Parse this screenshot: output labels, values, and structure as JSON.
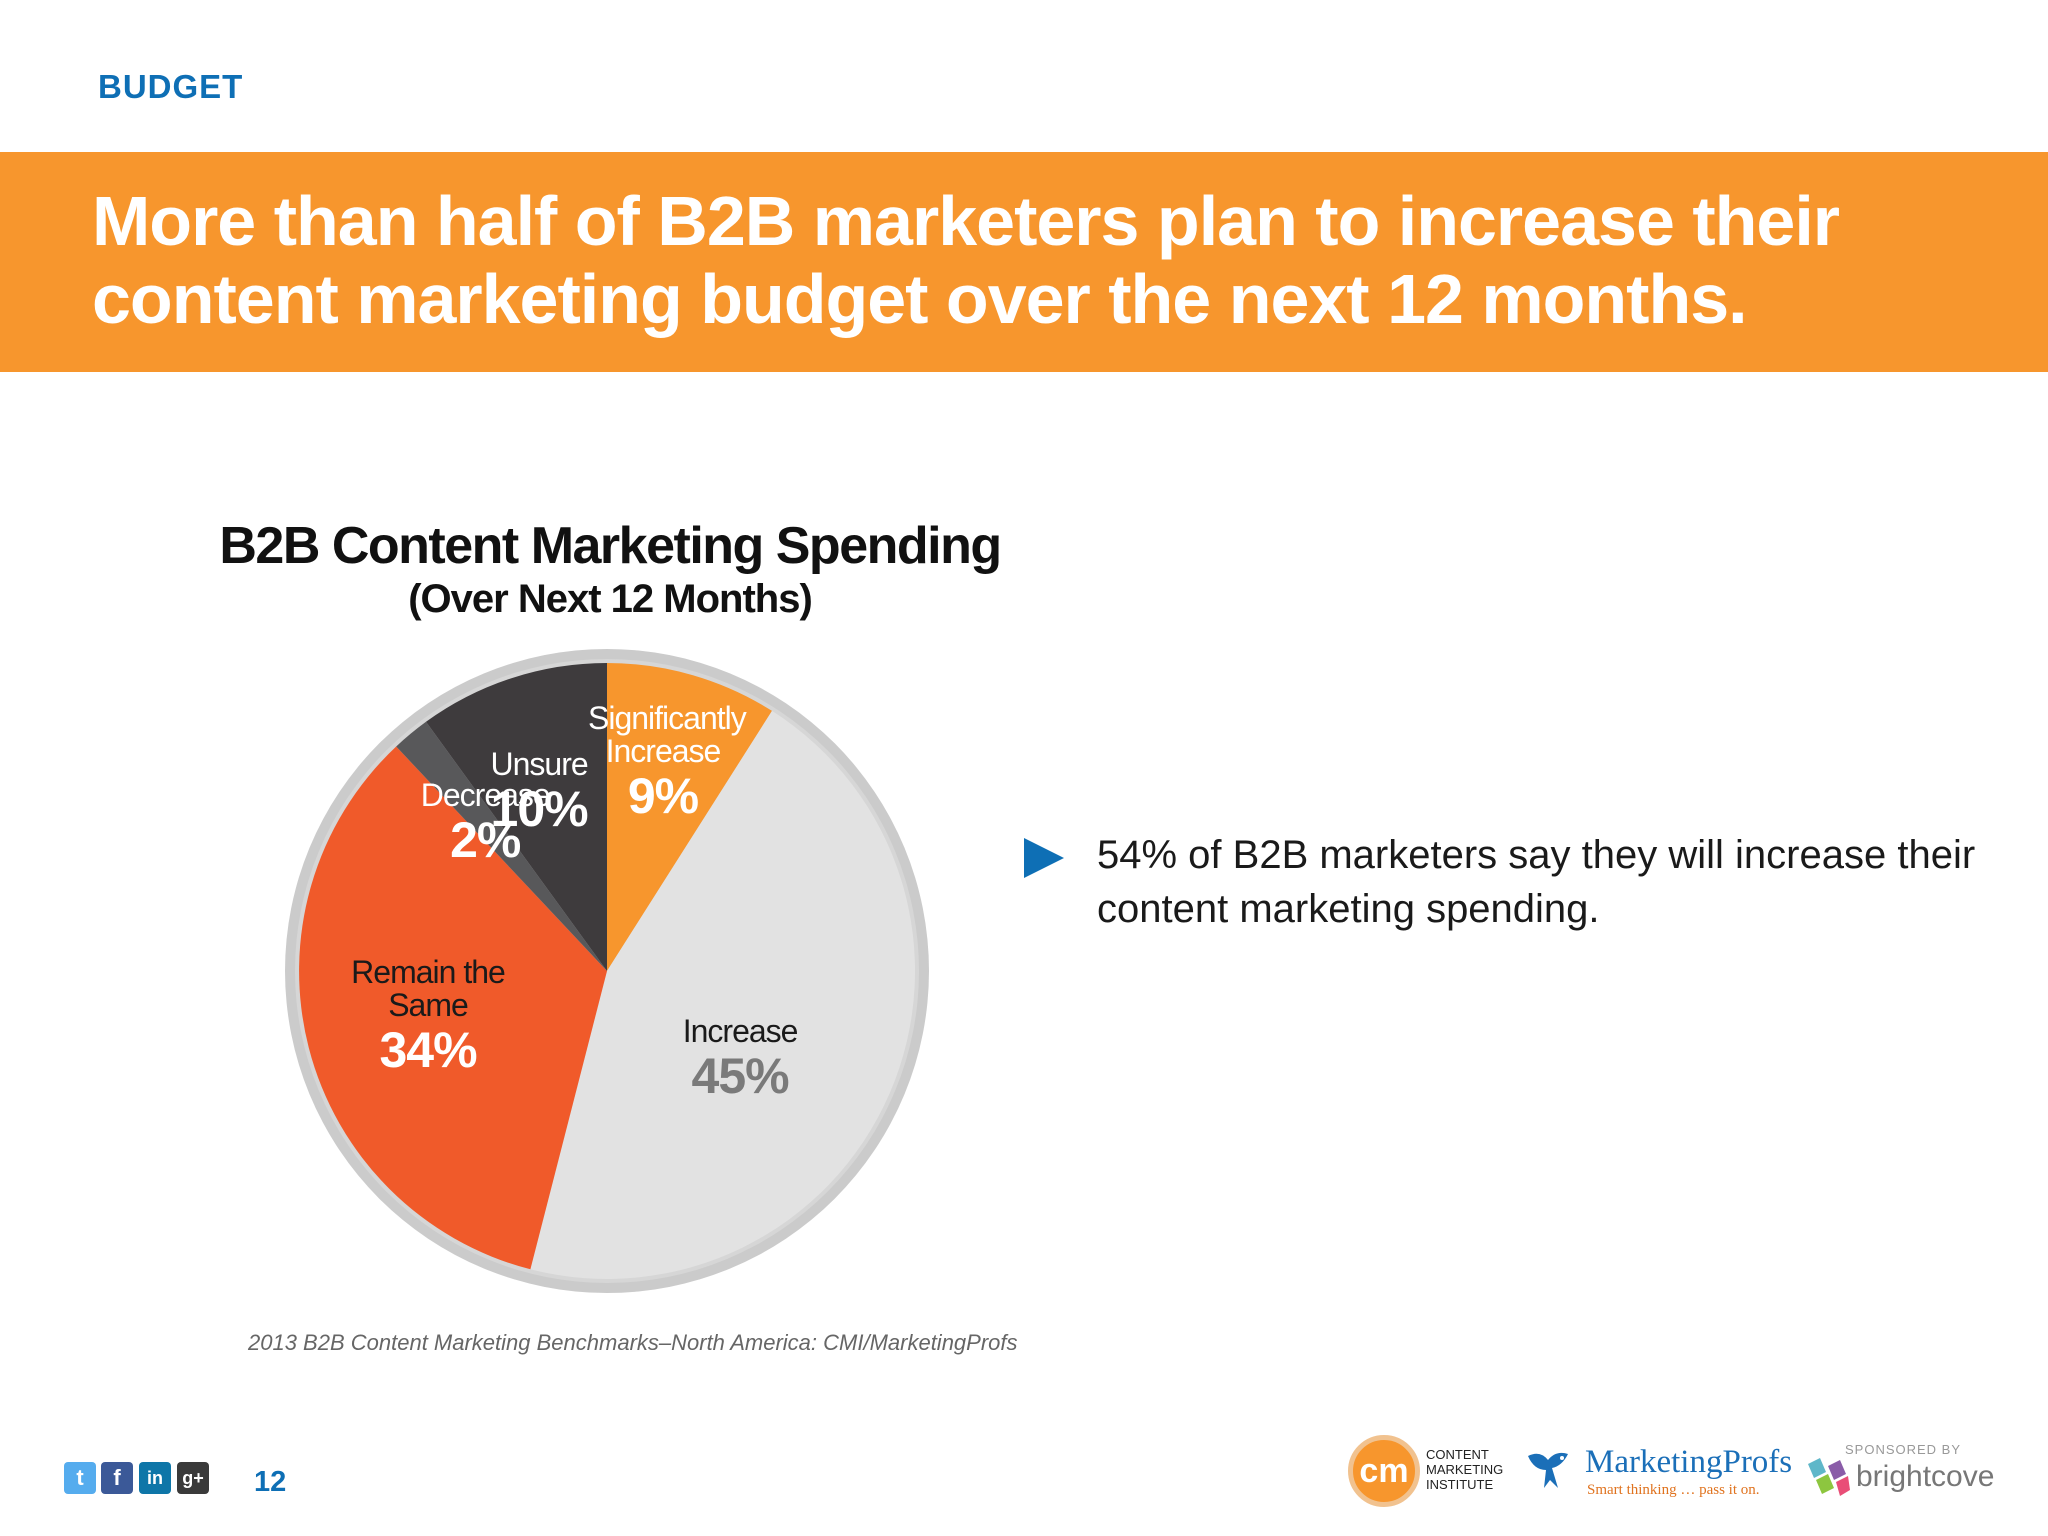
{
  "header": {
    "section_label": "BUDGET",
    "headline": "More than half of B2B marketers plan to increase their content marketing budget over the next 12 months."
  },
  "chart_data": {
    "type": "pie",
    "title": "B2B Content Marketing Spending",
    "subtitle": "(Over Next 12 Months)",
    "slices": [
      {
        "label": "Significantly Increase",
        "value": 9,
        "display": "9%",
        "color": "#f7962d",
        "label_color": "#ffffff",
        "pct_color": "#ffffff"
      },
      {
        "label": "Increase",
        "value": 45,
        "display": "45%",
        "color": "#e2e2e2",
        "label_color": "#1a1a1a",
        "pct_color": "#7a7a7a"
      },
      {
        "label": "Remain the Same",
        "value": 34,
        "display": "34%",
        "color": "#f05a2a",
        "label_color": "#1a1a1a",
        "pct_color": "#ffffff"
      },
      {
        "label": "Decrease",
        "value": 2,
        "display": "2%",
        "color": "#58585a",
        "label_color": "#ffffff",
        "pct_color": "#ffffff"
      },
      {
        "label": "Unsure",
        "value": 10,
        "display": "10%",
        "color": "#3e3b3d",
        "label_color": "#ffffff",
        "pct_color": "#ffffff"
      }
    ],
    "start": "top",
    "direction": "clockwise",
    "legend": "none",
    "source": "2013 B2B Content Marketing Benchmarks–North America: CMI/MarketingProfs"
  },
  "callout": {
    "text": "54% of B2B marketers say they will increase their content marketing spending."
  },
  "footer": {
    "page_number": "12",
    "social_icons": [
      "twitter-icon",
      "facebook-icon",
      "linkedin-icon",
      "google-plus-icon"
    ],
    "cmi_logo_text": "cm",
    "cmi_name": "CONTENT MARKETING INSTITUTE",
    "marketingprofs_name": "MarketingProfs",
    "marketingprofs_tagline": "Smart thinking … pass it on.",
    "sponsor_label": "SPONSORED BY",
    "sponsor_name": "brightcove"
  }
}
